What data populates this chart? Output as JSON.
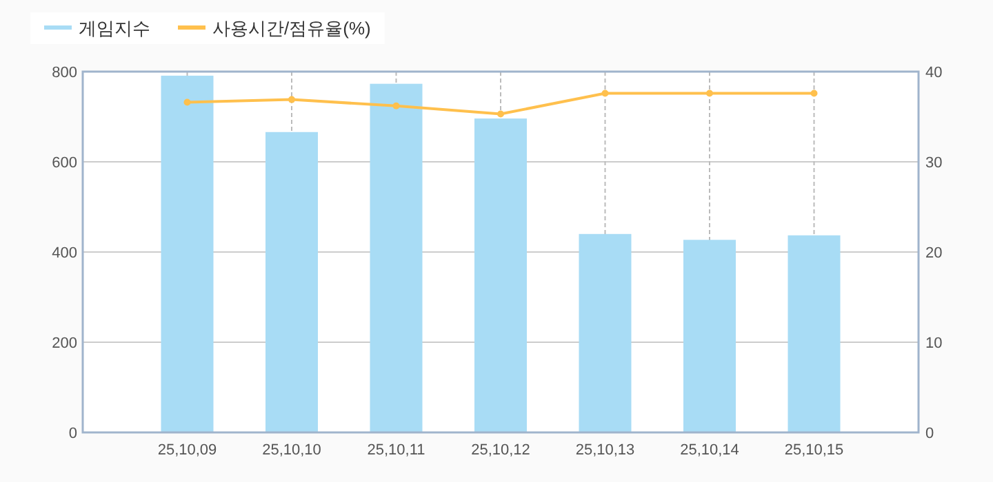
{
  "chart_data": {
    "type": "bar",
    "categories": [
      "25,10,09",
      "25,10,10",
      "25,10,11",
      "25,10,12",
      "25,10,13",
      "25,10,14",
      "25,10,15"
    ],
    "series": [
      {
        "name": "게임지수",
        "color": "#a8dcf5",
        "values": [
          791,
          666,
          773,
          696,
          440,
          427,
          437
        ]
      },
      {
        "name": "사용시간/점유율(%)",
        "type": "line",
        "axis": "y2",
        "color": "#ffc04d",
        "marker": "circle",
        "values": [
          36.6,
          36.9,
          36.2,
          35.3,
          37.6,
          37.6,
          37.6
        ]
      }
    ],
    "ylim": [
      0,
      800
    ],
    "yticks": [
      0,
      200,
      400,
      600,
      800
    ],
    "y2lim": [
      0,
      40
    ],
    "y2ticks": [
      0,
      10,
      20,
      30,
      40
    ],
    "grid": true,
    "legend": "top left"
  }
}
